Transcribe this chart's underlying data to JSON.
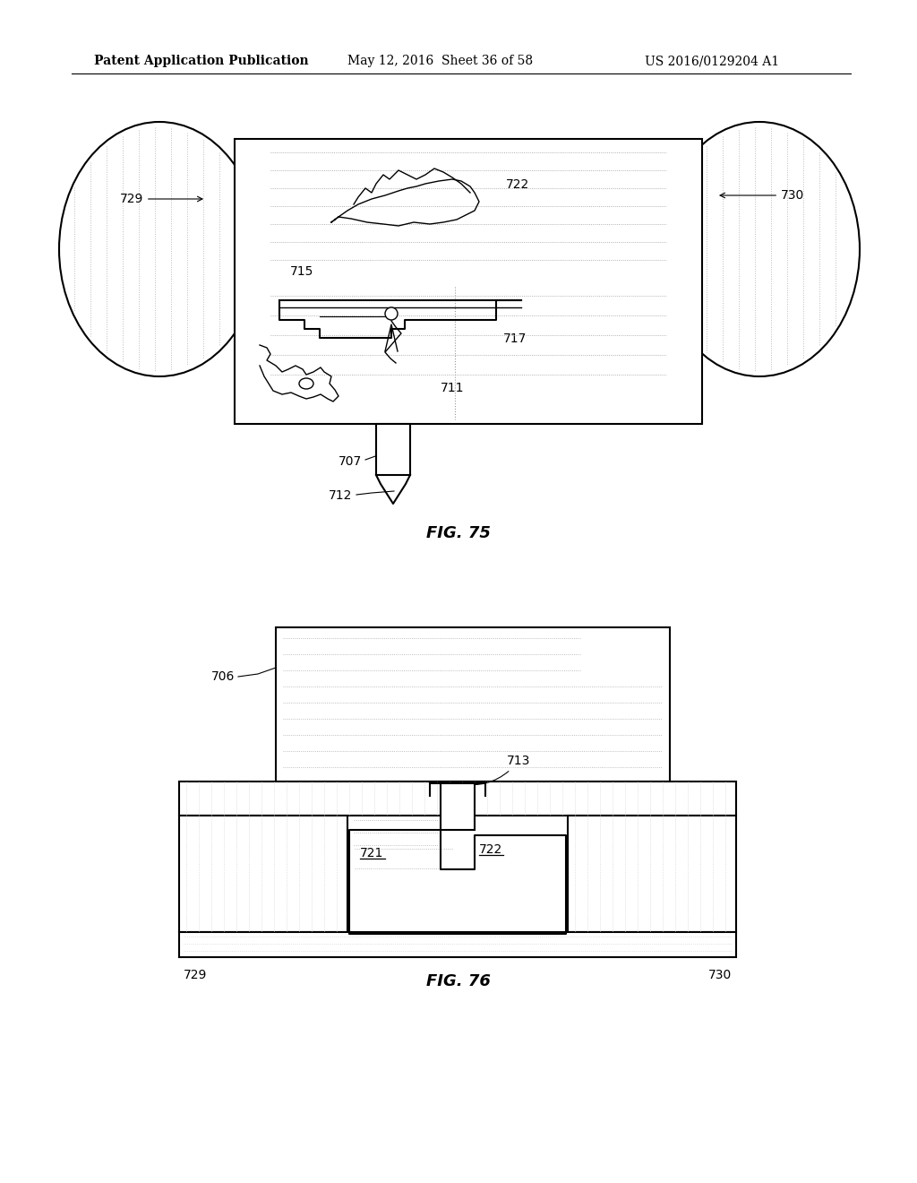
{
  "bg_color": "#ffffff",
  "line_color": "#000000",
  "header_text": "Patent Application Publication",
  "header_date": "May 12, 2016  Sheet 36 of 58",
  "header_patent": "US 2016/0129204 A1",
  "fig75_label": "FIG. 75",
  "fig76_label": "FIG. 76"
}
